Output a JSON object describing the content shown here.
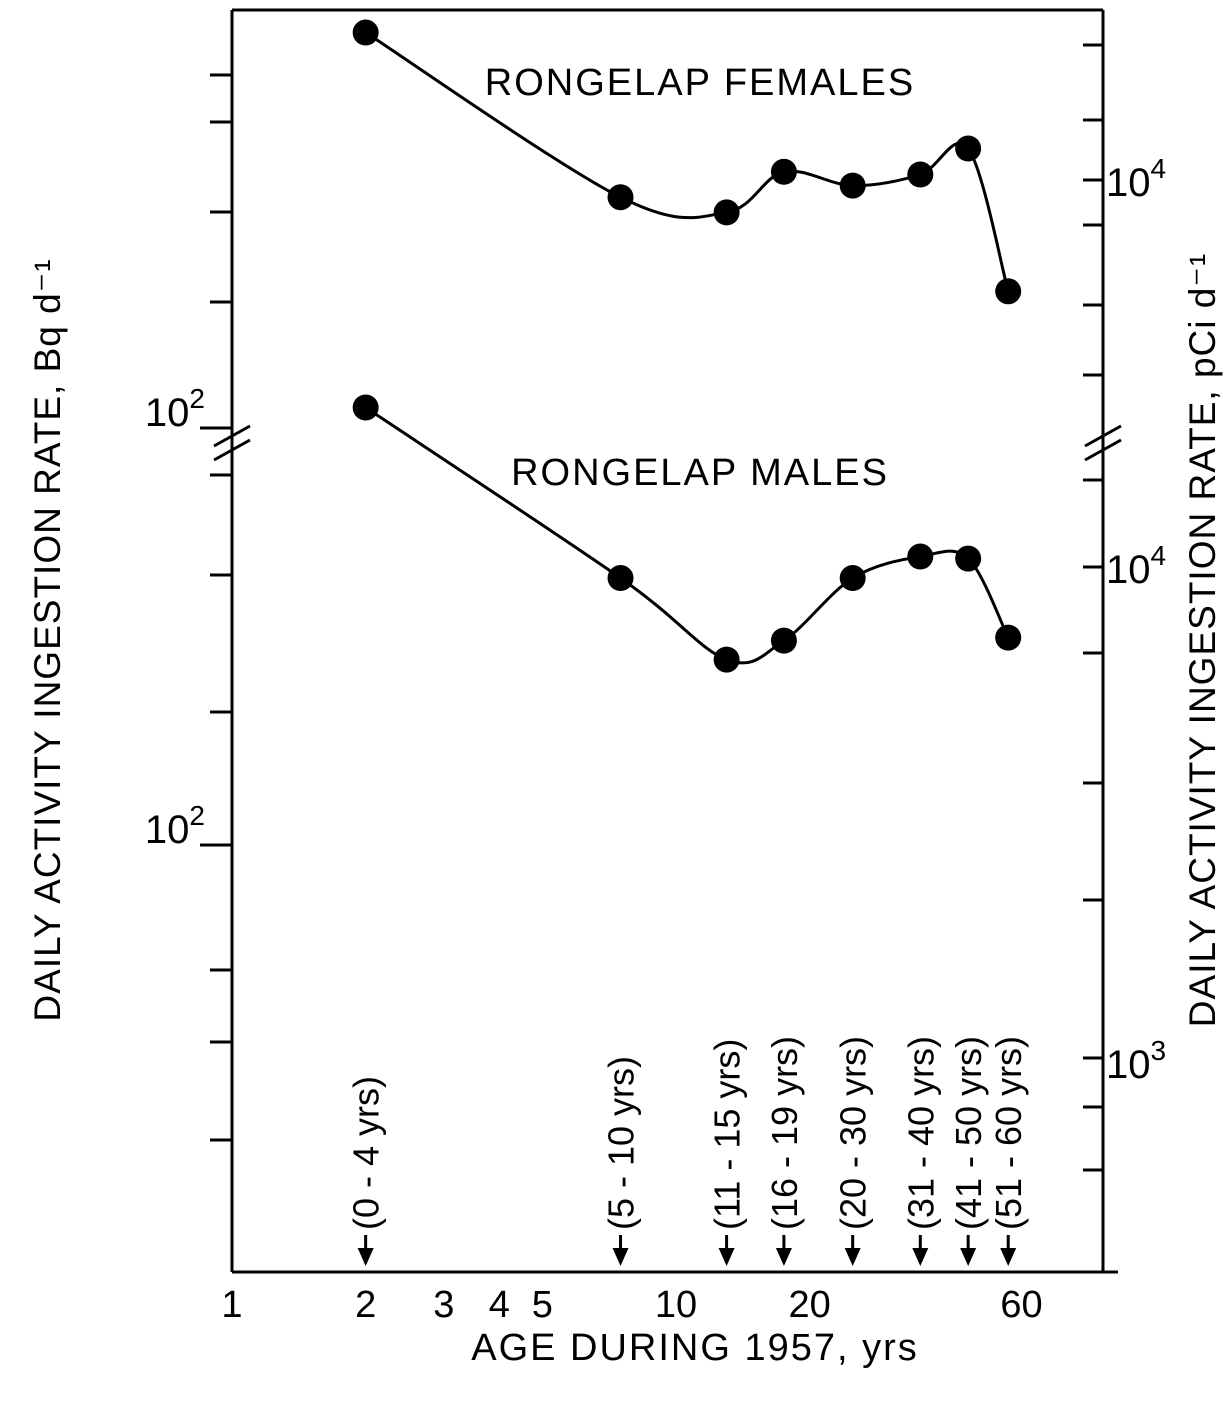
{
  "chart_data": {
    "type": "line",
    "xlabel": "AGE DURING 1957, yrs",
    "ylabel_left": "DAILY ACTIVITY INGESTION RATE, Bq d⁻¹",
    "ylabel_right": "DAILY ACTIVITY INGESTION RATE, pCi d⁻¹",
    "x_scale": "log",
    "y_scale": "log",
    "xlim": [
      1,
      100
    ],
    "x_ticks": [
      {
        "value": 1,
        "label": "1"
      },
      {
        "value": 2,
        "label": "2"
      },
      {
        "value": 3,
        "label": "3"
      },
      {
        "value": 4,
        "label": "4"
      },
      {
        "value": 5,
        "label": "5"
      },
      {
        "value": 10,
        "label": "10"
      },
      {
        "value": 20,
        "label": "20"
      },
      {
        "value": 60,
        "label": "60"
      }
    ],
    "age_groups": [
      {
        "label": "(0 - 4 yrs)",
        "x": 2
      },
      {
        "label": "(5 - 10 yrs)",
        "x": 7.5
      },
      {
        "label": "(11 - 15 yrs)",
        "x": 13
      },
      {
        "label": "(16 - 19 yrs)",
        "x": 17.5
      },
      {
        "label": "(20 - 30 yrs)",
        "x": 25
      },
      {
        "label": "(31 - 40 yrs)",
        "x": 35.5
      },
      {
        "label": "(41 - 50 yrs)",
        "x": 45.5
      },
      {
        "label": "(51 - 60 yrs)",
        "x": 56
      }
    ],
    "panels": [
      {
        "name": "RONGELAP FEMALES",
        "ylim_pci": [
          3000,
          40000
        ],
        "left_tick_labels": [
          {
            "value": 100,
            "label": "10",
            "exp": "2"
          }
        ],
        "right_tick_labels": [
          {
            "value": 10000,
            "label": "10",
            "exp": "4"
          }
        ],
        "series": [
          {
            "x": [
              2,
              7.5,
              13,
              17.5,
              25,
              35.5,
              45.5,
              56
            ],
            "y_pci": [
              17000,
              9400,
              8900,
              10300,
              9800,
              10200,
              11200,
              6700
            ]
          }
        ]
      },
      {
        "name": "RONGELAP MALES",
        "ylim_pci": [
          500,
          40000
        ],
        "left_tick_labels": [
          {
            "value": 100,
            "label": "10",
            "exp": "2"
          }
        ],
        "right_tick_labels": [
          {
            "value": 10000,
            "label": "10",
            "exp": "4"
          },
          {
            "value": 1000,
            "label": "10",
            "exp": "3"
          }
        ],
        "series": [
          {
            "x": [
              2,
              7.5,
              13,
              17.5,
              25,
              35.5,
              45.5,
              56
            ],
            "y_pci": [
              21000,
              9500,
              6500,
              7100,
              9500,
              10500,
              10400,
              7200
            ]
          }
        ]
      }
    ]
  }
}
